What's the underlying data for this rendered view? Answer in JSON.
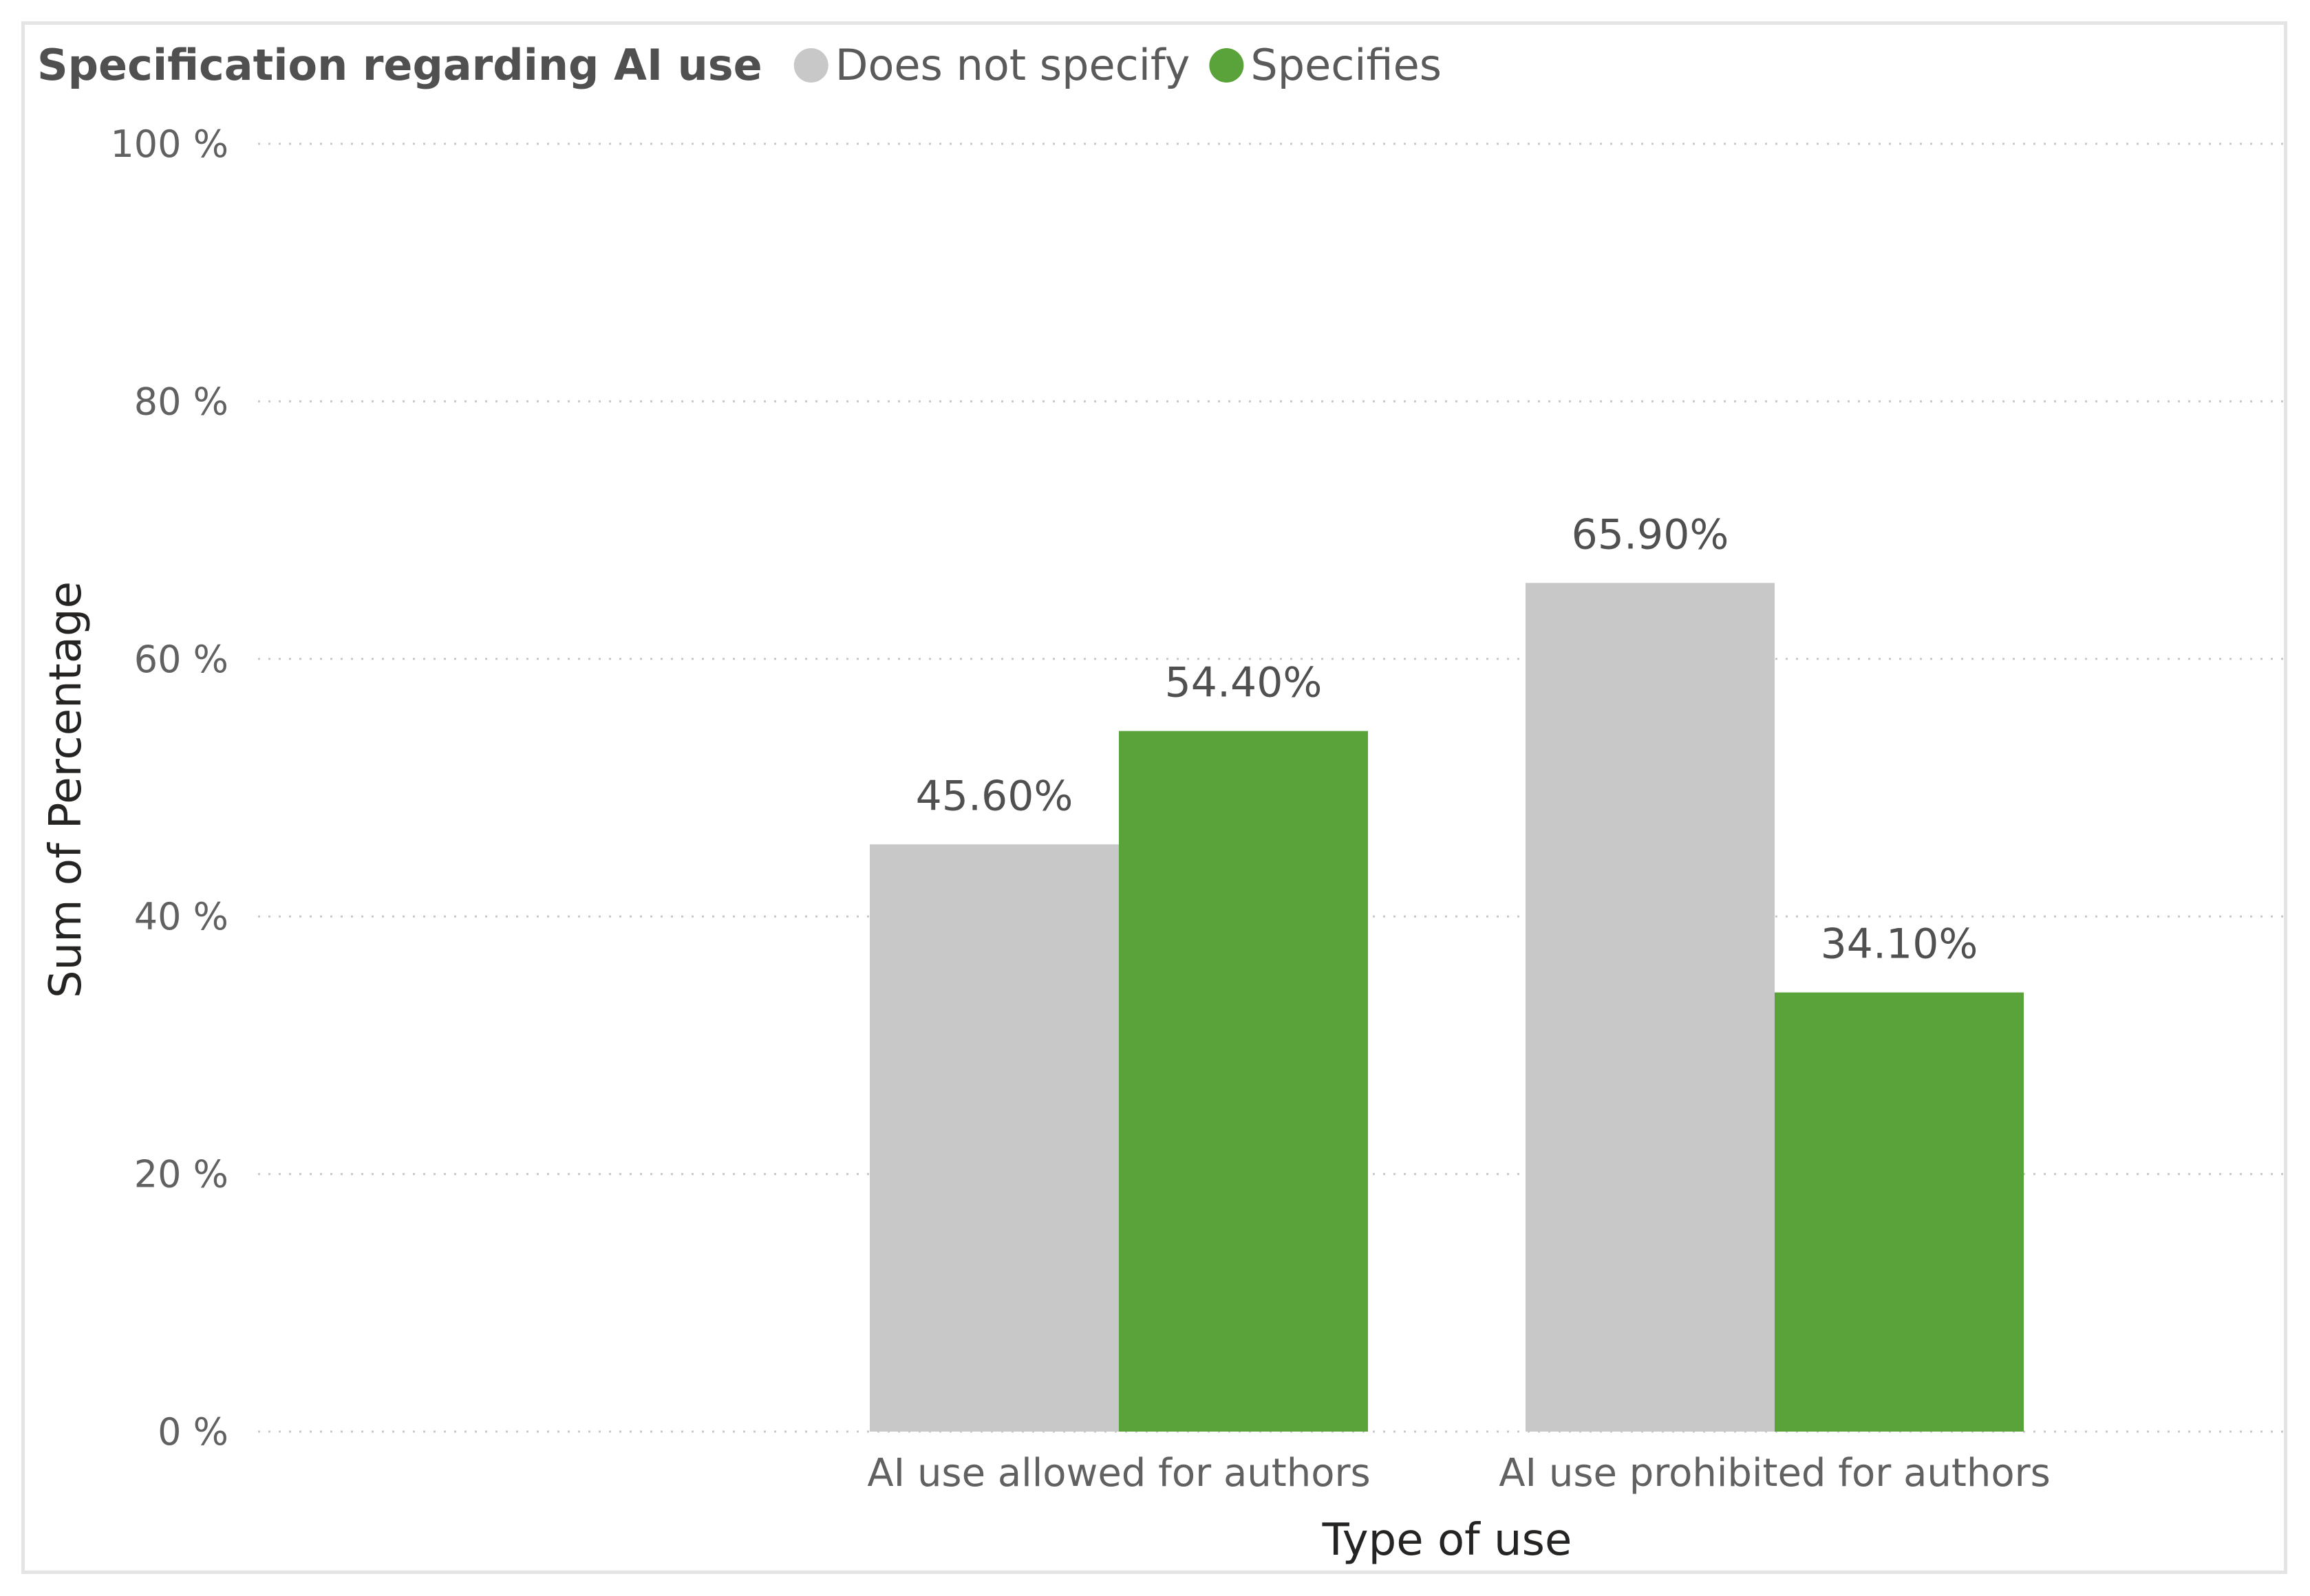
{
  "chart_data": {
    "type": "bar",
    "legend_title": "Specification regarding AI use",
    "legend_position": "top-left",
    "categories": [
      "AI use allowed for authors",
      "AI use prohibited for authors"
    ],
    "series": [
      {
        "name": "Does not specify",
        "color": "#c8c8c8",
        "values": [
          45.6,
          65.9
        ],
        "labels": [
          "45.60%",
          "65.90%"
        ]
      },
      {
        "name": "Specifies",
        "color": "#5aa23a",
        "values": [
          54.4,
          34.1
        ],
        "labels": [
          "54.40%",
          "34.10%"
        ]
      }
    ],
    "xlabel": "Type of use",
    "ylabel": "Sum of Percentage",
    "ylim": [
      0,
      100
    ],
    "yticks": [
      0,
      20,
      40,
      60,
      80,
      100
    ],
    "ytick_labels": [
      "0 %",
      "20 %",
      "40 %",
      "60 %",
      "80 %",
      "100 %"
    ],
    "grid": true
  }
}
